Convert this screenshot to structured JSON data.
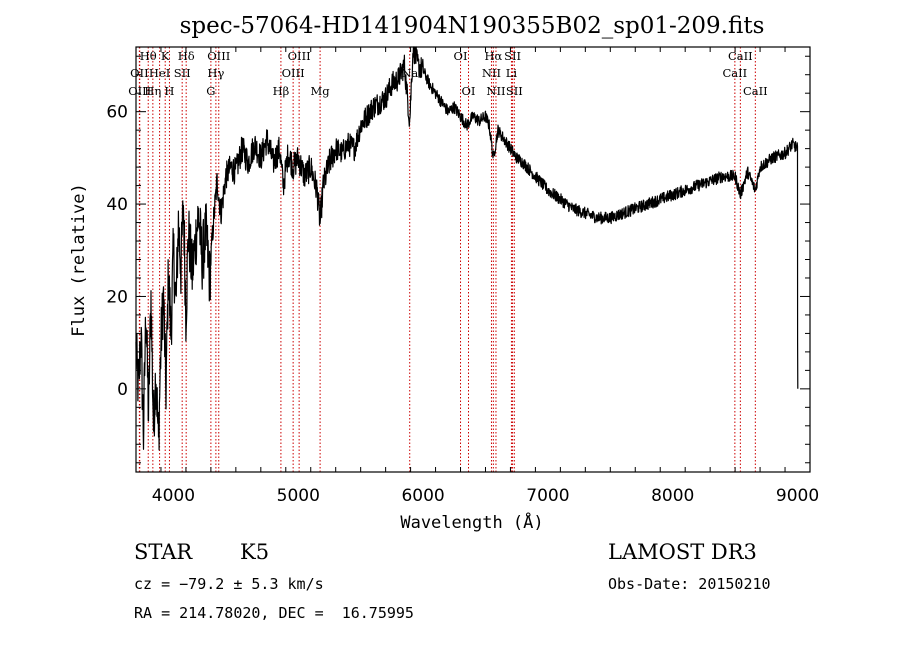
{
  "chart_data": {
    "type": "line",
    "title": "spec-57064-HD141904N190355B02_sp01-209.fits",
    "xlabel": "Wavelength (Å)",
    "ylabel": "Flux (relative)",
    "xlim": [
      3700,
      9100
    ],
    "ylim": [
      -18,
      74
    ],
    "xticks": [
      4000,
      5000,
      6000,
      7000,
      8000,
      9000
    ],
    "yticks": [
      0,
      20,
      40,
      60
    ],
    "spectrum_anchor_points": [
      [
        3700,
        8
      ],
      [
        3720,
        0
      ],
      [
        3740,
        12
      ],
      [
        3760,
        -10
      ],
      [
        3780,
        18
      ],
      [
        3800,
        -6
      ],
      [
        3820,
        20
      ],
      [
        3840,
        -8
      ],
      [
        3860,
        4
      ],
      [
        3880,
        -12
      ],
      [
        3900,
        10
      ],
      [
        3920,
        20
      ],
      [
        3940,
        0
      ],
      [
        3960,
        25
      ],
      [
        3980,
        12
      ],
      [
        4000,
        30
      ],
      [
        4020,
        18
      ],
      [
        4040,
        36
      ],
      [
        4060,
        26
      ],
      [
        4080,
        40
      ],
      [
        4100,
        16
      ],
      [
        4120,
        34
      ],
      [
        4150,
        25
      ],
      [
        4200,
        38
      ],
      [
        4230,
        28
      ],
      [
        4260,
        34
      ],
      [
        4290,
        24
      ],
      [
        4320,
        36
      ],
      [
        4350,
        45
      ],
      [
        4380,
        38
      ],
      [
        4420,
        46
      ],
      [
        4460,
        48
      ],
      [
        4500,
        47
      ],
      [
        4550,
        52
      ],
      [
        4600,
        49
      ],
      [
        4650,
        53
      ],
      [
        4700,
        50
      ],
      [
        4750,
        54
      ],
      [
        4800,
        49
      ],
      [
        4850,
        52
      ],
      [
        4880,
        44
      ],
      [
        4920,
        51
      ],
      [
        4960,
        48
      ],
      [
        5000,
        50
      ],
      [
        5050,
        46
      ],
      [
        5100,
        48
      ],
      [
        5150,
        43
      ],
      [
        5175,
        36
      ],
      [
        5200,
        44
      ],
      [
        5250,
        49
      ],
      [
        5300,
        52
      ],
      [
        5350,
        51
      ],
      [
        5400,
        53
      ],
      [
        5450,
        52
      ],
      [
        5500,
        57
      ],
      [
        5550,
        59
      ],
      [
        5600,
        61
      ],
      [
        5650,
        62
      ],
      [
        5700,
        63
      ],
      [
        5750,
        66
      ],
      [
        5800,
        67
      ],
      [
        5850,
        70
      ],
      [
        5893,
        58
      ],
      [
        5920,
        74
      ],
      [
        5960,
        70
      ],
      [
        6000,
        69
      ],
      [
        6050,
        66
      ],
      [
        6100,
        64
      ],
      [
        6150,
        62
      ],
      [
        6200,
        60
      ],
      [
        6250,
        61
      ],
      [
        6300,
        59
      ],
      [
        6350,
        57
      ],
      [
        6400,
        59
      ],
      [
        6450,
        58
      ],
      [
        6500,
        59
      ],
      [
        6530,
        57
      ],
      [
        6563,
        50
      ],
      [
        6600,
        56
      ],
      [
        6650,
        54
      ],
      [
        6700,
        52
      ],
      [
        6750,
        50
      ],
      [
        6800,
        49
      ],
      [
        6900,
        46
      ],
      [
        7000,
        43
      ],
      [
        7100,
        41
      ],
      [
        7200,
        39
      ],
      [
        7300,
        38
      ],
      [
        7400,
        37
      ],
      [
        7500,
        37
      ],
      [
        7600,
        38
      ],
      [
        7700,
        39
      ],
      [
        7800,
        40
      ],
      [
        7900,
        41
      ],
      [
        8000,
        42
      ],
      [
        8100,
        43
      ],
      [
        8200,
        44
      ],
      [
        8300,
        45
      ],
      [
        8400,
        46
      ],
      [
        8500,
        46
      ],
      [
        8542,
        42
      ],
      [
        8600,
        47
      ],
      [
        8662,
        43
      ],
      [
        8700,
        48
      ],
      [
        8800,
        50
      ],
      [
        8900,
        51
      ],
      [
        8960,
        53
      ],
      [
        9000,
        52
      ],
      [
        9001,
        10
      ],
      [
        9002,
        0
      ]
    ],
    "spectral_lines": [
      {
        "label": "Hθ",
        "wavelength": 3798,
        "row": 1
      },
      {
        "label": "OII",
        "wavelength": 3727,
        "row": 2
      },
      {
        "label": "OIII",
        "wavelength": 3730,
        "row": 3
      },
      {
        "label": "K",
        "wavelength": 3934,
        "row": 1
      },
      {
        "label": "HeI",
        "wavelength": 3889,
        "row": 2
      },
      {
        "label": "Hη",
        "wavelength": 3835,
        "row": 3
      },
      {
        "label": "Hδ",
        "wavelength": 4102,
        "row": 1
      },
      {
        "label": "SII",
        "wavelength": 4070,
        "row": 2
      },
      {
        "label": "H",
        "wavelength": 3968,
        "row": 3
      },
      {
        "label": "OIII",
        "wavelength": 4363,
        "row": 1
      },
      {
        "label": "Hγ",
        "wavelength": 4340,
        "row": 2
      },
      {
        "label": "G",
        "wavelength": 4300,
        "row": 3
      },
      {
        "label": "OIII",
        "wavelength": 5007,
        "row": 1
      },
      {
        "label": "OIII",
        "wavelength": 4959,
        "row": 2
      },
      {
        "label": "Hβ",
        "wavelength": 4861,
        "row": 3
      },
      {
        "label": "Mg",
        "wavelength": 5175,
        "row": 3
      },
      {
        "label": "Na",
        "wavelength": 5893,
        "row": 2
      },
      {
        "label": "OI",
        "wavelength": 6300,
        "row": 1
      },
      {
        "label": "OI",
        "wavelength": 6364,
        "row": 3
      },
      {
        "label": "Hα",
        "wavelength": 6563,
        "row": 1
      },
      {
        "label": "SII",
        "wavelength": 6717,
        "row": 1
      },
      {
        "label": "NII",
        "wavelength": 6548,
        "row": 2
      },
      {
        "label": "Li",
        "wavelength": 6708,
        "row": 2
      },
      {
        "label": "NII",
        "wavelength": 6584,
        "row": 3
      },
      {
        "label": "SII",
        "wavelength": 6731,
        "row": 3
      },
      {
        "label": "CaII",
        "wavelength": 8542,
        "row": 1
      },
      {
        "label": "CaII",
        "wavelength": 8498,
        "row": 2
      },
      {
        "label": "CaII",
        "wavelength": 8662,
        "row": 3
      }
    ],
    "line_marker_color": "#cc0000",
    "spectrum_color": "#000000"
  },
  "info": {
    "object_class": "STAR",
    "subclass": "K5",
    "cz": "cz = −79.2 ± 5.3 km/s",
    "coords": "RA = 214.78020, DEC =  16.75995",
    "survey": "LAMOST DR3",
    "obs_date": "Obs-Date: 20150210"
  }
}
